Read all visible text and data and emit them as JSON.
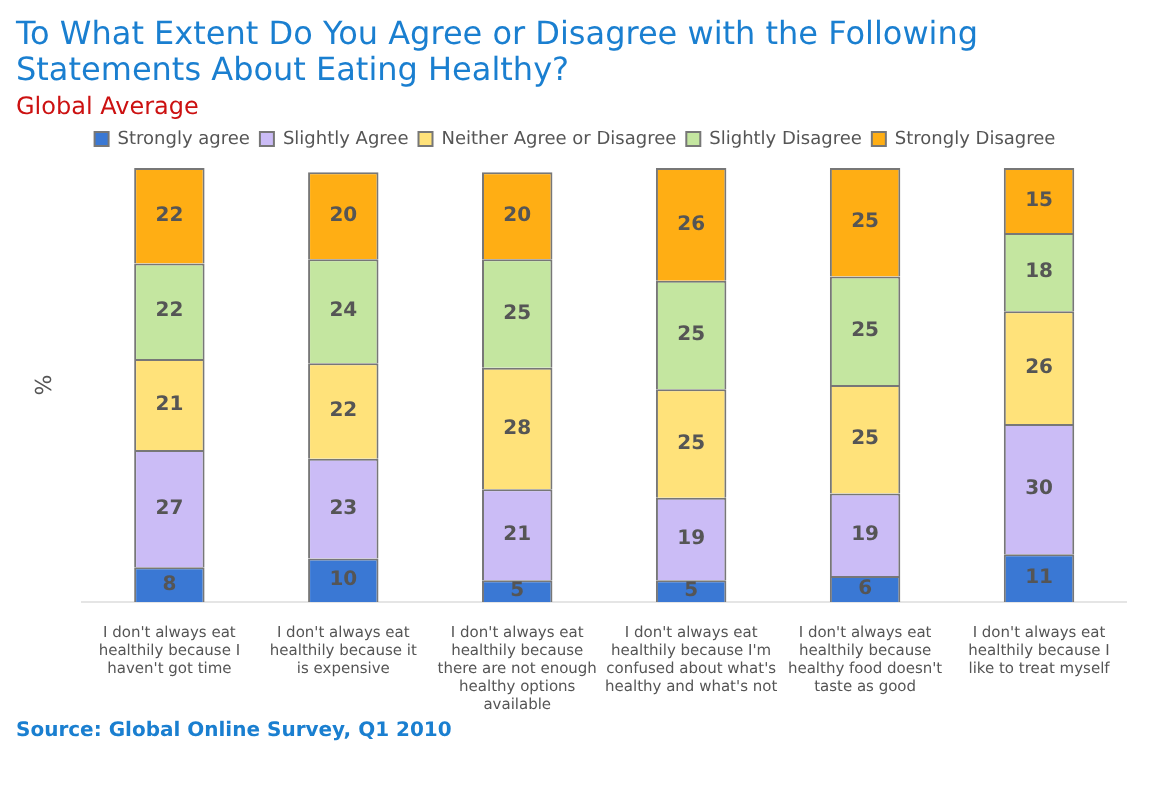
{
  "chart_data": {
    "type": "bar",
    "title": "To What Extent Do You Agree or Disagree with the Following Statements About Eating Healthy?",
    "subtitle": "Global Average",
    "ylabel": "%",
    "categories": [
      "I don't always eat healthily because I haven't got time",
      "I don't always eat healthily because it is expensive",
      "I don't always eat healthily because there are not enough healthy options available",
      "I don't always eat healthily because I'm confused about what's healthy and what's not",
      "I don't always eat healthily because healthy food doesn't taste as good",
      "I don't always eat healthily because I like to treat myself"
    ],
    "series": [
      {
        "name": "Strongly agree",
        "color": "#3a78d4",
        "values": [
          8,
          10,
          5,
          5,
          6,
          11
        ]
      },
      {
        "name": "Slightly Agree",
        "color": "#cbbcf6",
        "values": [
          27,
          23,
          21,
          19,
          19,
          30
        ]
      },
      {
        "name": "Neither Agree or Disagree",
        "color": "#ffe27a",
        "values": [
          21,
          22,
          28,
          25,
          25,
          26
        ]
      },
      {
        "name": "Slightly Disagree",
        "color": "#c4e6a0",
        "values": [
          22,
          24,
          25,
          25,
          25,
          18
        ]
      },
      {
        "name": "Strongly Disagree",
        "color": "#ffae14",
        "values": [
          22,
          20,
          20,
          26,
          25,
          15
        ]
      }
    ],
    "stacked": true,
    "data_labels": true,
    "legend": "top",
    "grid": false,
    "annotations": [
      "Source: Global Online Survey, Q1 2010"
    ]
  }
}
